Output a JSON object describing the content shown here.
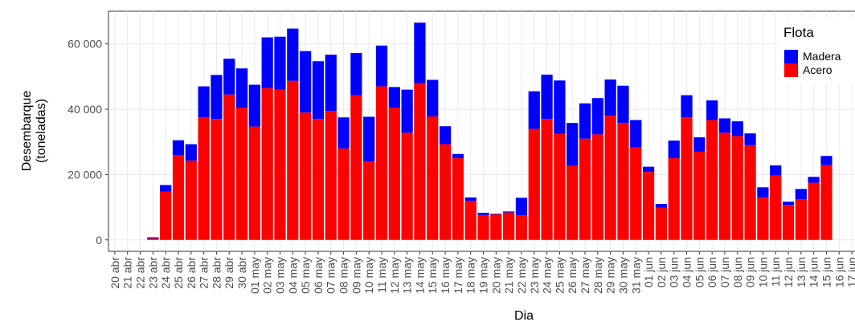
{
  "chart_data": {
    "type": "bar",
    "stacked": true,
    "xlabel": "Dia",
    "ylabel": [
      "Desembarque",
      "(toneladas)"
    ],
    "categories": [
      "20 abr",
      "21 abr",
      "22 abr",
      "23 abr",
      "24 abr",
      "25 abr",
      "26 abr",
      "27 abr",
      "28 abr",
      "29 abr",
      "30 abr",
      "01 may",
      "02 may",
      "03 may",
      "04 may",
      "05 may",
      "06 may",
      "07 may",
      "08 may",
      "09 may",
      "10 may",
      "11 may",
      "12 may",
      "13 may",
      "14 may",
      "15 may",
      "16 may",
      "17 may",
      "18 may",
      "19 may",
      "20 may",
      "21 may",
      "22 may",
      "23 may",
      "24 may",
      "25 may",
      "26 may",
      "27 may",
      "28 may",
      "29 may",
      "30 may",
      "31 may",
      "01 jun",
      "02 jun",
      "03 jun",
      "04 jun",
      "05 jun",
      "06 jun",
      "07 jun",
      "08 jun",
      "09 jun",
      "10 jun",
      "11 jun",
      "12 jun",
      "13 jun",
      "14 jun",
      "15 jun",
      "16 jun",
      "17 jun"
    ],
    "series": [
      {
        "name": "Madera",
        "color": "#0000ff",
        "values": [
          null,
          null,
          null,
          300,
          2000,
          4500,
          5000,
          9500,
          13500,
          11000,
          12000,
          12800,
          15500,
          16200,
          16000,
          18800,
          17700,
          17200,
          9500,
          12900,
          13700,
          12500,
          6300,
          13200,
          18500,
          11200,
          5500,
          1300,
          1000,
          700,
          200,
          300,
          5400,
          11500,
          13600,
          16300,
          13100,
          10800,
          11100,
          11100,
          11400,
          8400,
          1600,
          1100,
          5400,
          6800,
          4400,
          6000,
          4400,
          4500,
          3600,
          3100,
          3100,
          1000,
          3200,
          1800,
          2800,
          null,
          null
        ]
      },
      {
        "name": "Acero",
        "color": "#ff0000",
        "values": [
          null,
          null,
          null,
          500,
          14800,
          26000,
          24300,
          37500,
          37000,
          44500,
          40500,
          34700,
          46500,
          46000,
          48700,
          39000,
          37000,
          39500,
          28000,
          44300,
          24000,
          47000,
          40500,
          32800,
          48000,
          37800,
          29300,
          25000,
          12000,
          7600,
          7800,
          8400,
          7500,
          34000,
          37000,
          32500,
          22700,
          31000,
          32300,
          38000,
          35800,
          28300,
          20800,
          9900,
          25000,
          37500,
          27000,
          36700,
          32800,
          31800,
          29000,
          13000,
          19700,
          10700,
          12400,
          17500,
          22900,
          null,
          null
        ]
      }
    ],
    "ylim": [
      -3500,
      70000
    ],
    "yticks": [
      0,
      {
        "value": 20000,
        "label": "20 000"
      },
      {
        "value": 40000,
        "label": "40 000"
      },
      {
        "value": 60000,
        "label": "60 000"
      }
    ],
    "grid": true,
    "legend": {
      "title": "Flota",
      "position": "right"
    }
  }
}
